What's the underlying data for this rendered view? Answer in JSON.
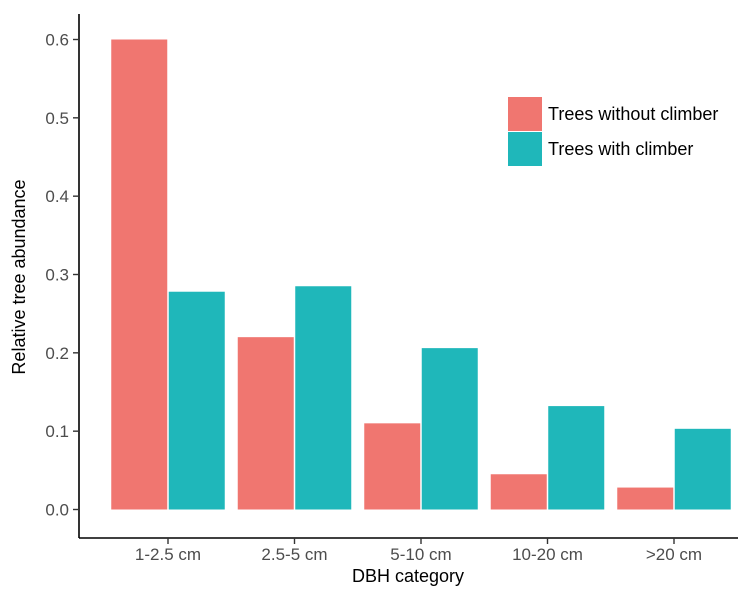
{
  "chart_data": {
    "type": "bar",
    "xlabel": "DBH category",
    "ylabel": "Relative tree abundance",
    "categories": [
      "1-2.5 cm",
      "2.5-5 cm",
      "5-10 cm",
      "10-20 cm",
      ">20 cm"
    ],
    "series": [
      {
        "name": "Trees without climber",
        "color": "#F07670",
        "values": [
          0.6,
          0.22,
          0.11,
          0.045,
          0.028
        ]
      },
      {
        "name": "Trees with climber",
        "color": "#1FB7BA",
        "values": [
          0.278,
          0.285,
          0.206,
          0.132,
          0.103
        ]
      }
    ],
    "ylim": [
      0,
      0.6
    ],
    "yticks": [
      "0.0",
      "0.1",
      "0.2",
      "0.3",
      "0.4",
      "0.5",
      "0.6"
    ],
    "legend_position": "top-right",
    "grid": false
  }
}
